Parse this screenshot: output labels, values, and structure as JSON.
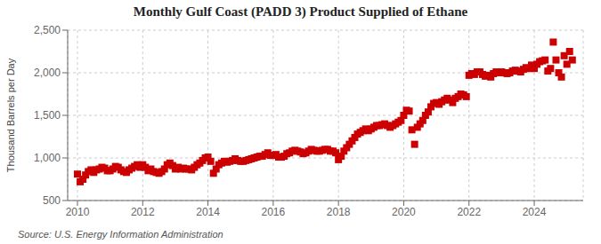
{
  "chart_data": {
    "type": "scatter",
    "title": "Monthly Gulf Coast (PADD 3) Product Supplied of Ethane",
    "y_label": "Thousand Barrels per Day",
    "annotations": [
      "Source: U.S. Energy Information Administration"
    ],
    "color": "#CC0000",
    "marker": "square",
    "grid": true,
    "xlim": [
      2009.7,
      2025.5
    ],
    "xticks": [
      2010,
      2012,
      2014,
      2016,
      2018,
      2020,
      2022,
      2024
    ],
    "ylim": [
      500,
      2500
    ],
    "yticks": [
      500,
      {
        "value": 1000,
        "label": "1,000"
      },
      {
        "value": 1500,
        "label": "1,500"
      },
      {
        "value": 2000,
        "label": "2,000"
      },
      {
        "value": 2500,
        "label": "2,500"
      }
    ],
    "x": [
      2010.0,
      2010.083,
      2010.167,
      2010.25,
      2010.333,
      2010.417,
      2010.5,
      2010.583,
      2010.667,
      2010.75,
      2010.833,
      2010.917,
      2011.0,
      2011.083,
      2011.167,
      2011.25,
      2011.333,
      2011.417,
      2011.5,
      2011.583,
      2011.667,
      2011.75,
      2011.833,
      2011.917,
      2012.0,
      2012.083,
      2012.167,
      2012.25,
      2012.333,
      2012.417,
      2012.5,
      2012.583,
      2012.667,
      2012.75,
      2012.833,
      2012.917,
      2013.0,
      2013.083,
      2013.167,
      2013.25,
      2013.333,
      2013.417,
      2013.5,
      2013.583,
      2013.667,
      2013.75,
      2013.833,
      2013.917,
      2014.0,
      2014.083,
      2014.167,
      2014.25,
      2014.333,
      2014.417,
      2014.5,
      2014.583,
      2014.667,
      2014.75,
      2014.833,
      2014.917,
      2015.0,
      2015.083,
      2015.167,
      2015.25,
      2015.333,
      2015.417,
      2015.5,
      2015.583,
      2015.667,
      2015.75,
      2015.833,
      2015.917,
      2016.0,
      2016.083,
      2016.167,
      2016.25,
      2016.333,
      2016.417,
      2016.5,
      2016.583,
      2016.667,
      2016.75,
      2016.833,
      2016.917,
      2017.0,
      2017.083,
      2017.167,
      2017.25,
      2017.333,
      2017.417,
      2017.5,
      2017.583,
      2017.667,
      2017.75,
      2017.833,
      2017.917,
      2018.0,
      2018.083,
      2018.167,
      2018.25,
      2018.333,
      2018.417,
      2018.5,
      2018.583,
      2018.667,
      2018.75,
      2018.833,
      2018.917,
      2019.0,
      2019.083,
      2019.167,
      2019.25,
      2019.333,
      2019.417,
      2019.5,
      2019.583,
      2019.667,
      2019.75,
      2019.833,
      2019.917,
      2020.0,
      2020.083,
      2020.167,
      2020.25,
      2020.333,
      2020.417,
      2020.5,
      2020.583,
      2020.667,
      2020.75,
      2020.833,
      2020.917,
      2021.0,
      2021.083,
      2021.167,
      2021.25,
      2021.333,
      2021.417,
      2021.5,
      2021.583,
      2021.667,
      2021.75,
      2021.833,
      2021.917,
      2022.0,
      2022.083,
      2022.167,
      2022.25,
      2022.333,
      2022.417,
      2022.5,
      2022.583,
      2022.667,
      2022.75,
      2022.833,
      2022.917,
      2023.0,
      2023.083,
      2023.167,
      2023.25,
      2023.333,
      2023.417,
      2023.5,
      2023.583,
      2023.667,
      2023.75,
      2023.833,
      2023.917,
      2024.0,
      2024.083,
      2024.167,
      2024.25,
      2024.333,
      2024.417,
      2024.5,
      2024.583,
      2024.667,
      2024.75,
      2024.833,
      2024.917,
      2025.0,
      2025.083,
      2025.167
    ],
    "values": [
      810,
      720,
      750,
      800,
      840,
      860,
      830,
      860,
      870,
      890,
      880,
      850,
      850,
      870,
      900,
      890,
      860,
      840,
      830,
      860,
      880,
      900,
      920,
      890,
      920,
      890,
      850,
      870,
      840,
      830,
      820,
      840,
      870,
      920,
      940,
      910,
      870,
      890,
      870,
      880,
      870,
      870,
      860,
      890,
      920,
      940,
      970,
      1000,
      1010,
      960,
      820,
      870,
      920,
      940,
      960,
      950,
      960,
      970,
      990,
      970,
      960,
      960,
      970,
      980,
      990,
      1000,
      1010,
      1020,
      1020,
      1040,
      1060,
      1030,
      1030,
      1040,
      1010,
      1010,
      1020,
      1050,
      1060,
      1080,
      1090,
      1080,
      1070,
      1050,
      1060,
      1080,
      1100,
      1090,
      1080,
      1080,
      1090,
      1100,
      1100,
      1080,
      1080,
      1060,
      980,
      1020,
      1080,
      1120,
      1160,
      1200,
      1240,
      1280,
      1300,
      1320,
      1340,
      1320,
      1340,
      1360,
      1380,
      1380,
      1390,
      1400,
      1380,
      1360,
      1380,
      1400,
      1420,
      1440,
      1500,
      1560,
      1550,
      1330,
      1160,
      1360,
      1400,
      1440,
      1500,
      1540,
      1600,
      1640,
      1650,
      1630,
      1660,
      1680,
      1700,
      1680,
      1650,
      1700,
      1720,
      1750,
      1740,
      1720,
      1970,
      1990,
      1980,
      2010,
      2010,
      1980,
      1960,
      1970,
      1950,
      1990,
      2010,
      2000,
      2010,
      2000,
      1990,
      2000,
      2020,
      2030,
      2020,
      2010,
      2040,
      2060,
      2050,
      2090,
      2050,
      2100,
      2130,
      2140,
      2150,
      2020,
      2050,
      2360,
      2150,
      2000,
      1950,
      2200,
      2100,
      2250,
      2150
    ]
  }
}
